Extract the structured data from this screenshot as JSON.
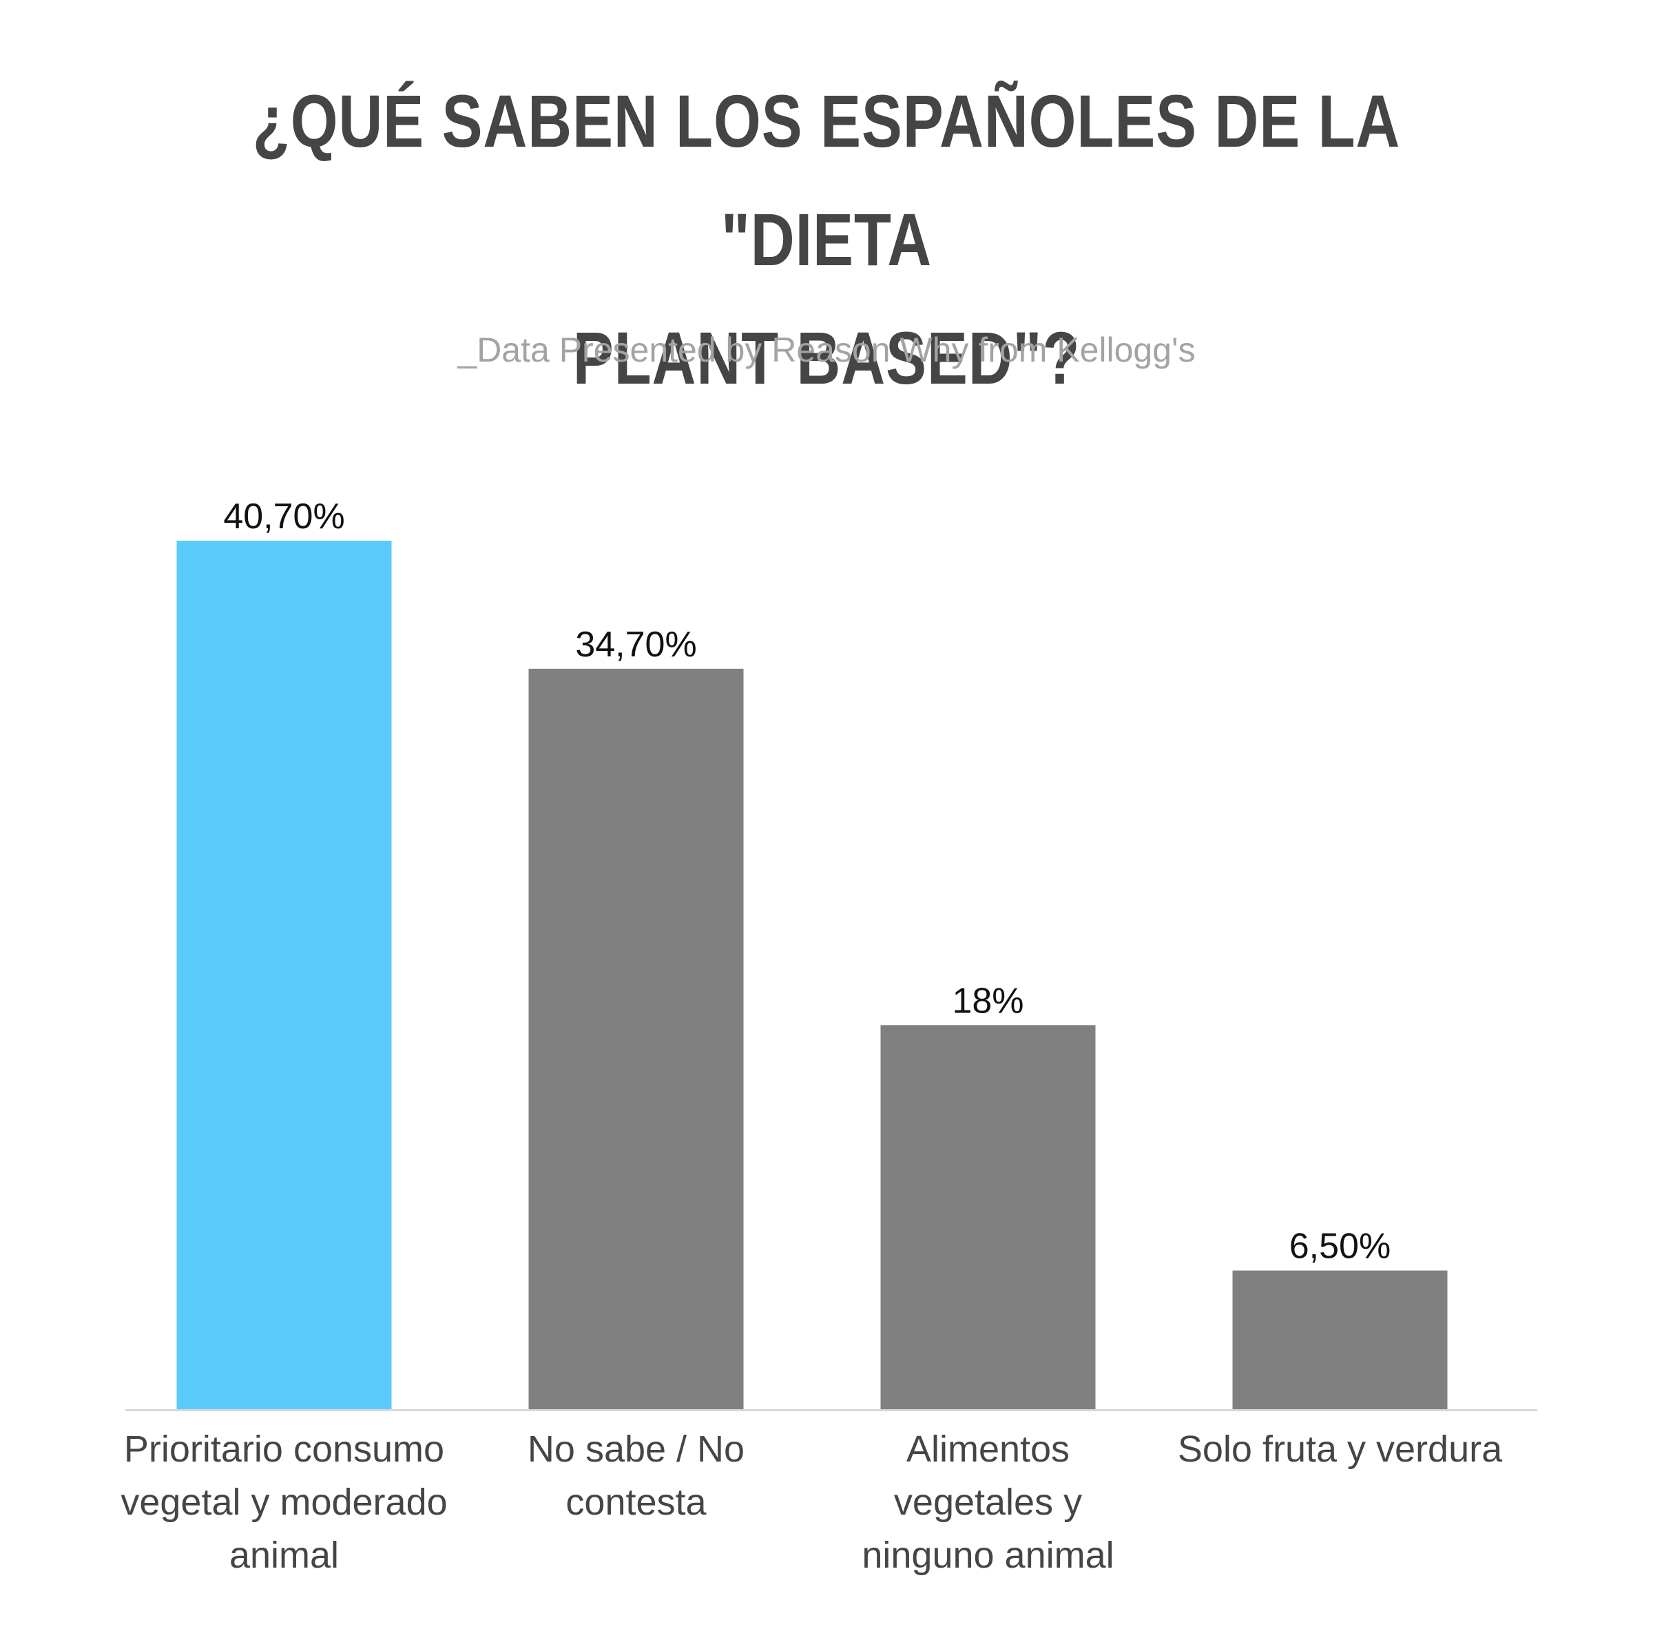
{
  "chart_data": {
    "type": "bar",
    "title_lines": [
      "¿QUÉ SABEN LOS ESPAÑOLES DE LA \"DIETA",
      "PLANT BASED\"?"
    ],
    "subtitle": "_Data Presented by Reason Why from Kellogg's",
    "categories": [
      [
        "Prioritario consumo",
        "vegetal y moderado",
        "animal"
      ],
      [
        "No sabe / No",
        "contesta"
      ],
      [
        "Alimentos",
        "vegetales y",
        "ninguno animal"
      ],
      [
        "Solo fruta y verdura"
      ]
    ],
    "values": [
      40.7,
      34.7,
      18,
      6.5
    ],
    "value_labels": [
      "40,70%",
      "34,70%",
      "18%",
      "6,50%"
    ],
    "bar_colors": [
      "#5bcbfc",
      "#808080",
      "#808080",
      "#808080"
    ],
    "axis_color": "#d8d8d8",
    "ylim": [
      0,
      40.7
    ],
    "grid": false,
    "legend": "none"
  }
}
